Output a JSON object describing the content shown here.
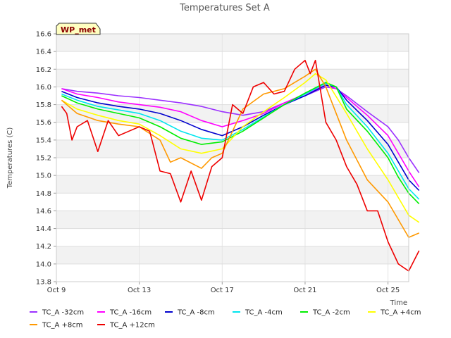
{
  "chart_data": {
    "type": "line",
    "title": "Temperatures Set A",
    "xlabel": "Time",
    "ylabel": "Temperatures (C)",
    "badge": "WP_met",
    "ylim": [
      13.8,
      16.6
    ],
    "yticks": [
      "13.8",
      "14.0",
      "14.2",
      "14.4",
      "14.6",
      "14.8",
      "15.0",
      "15.2",
      "15.4",
      "15.6",
      "15.8",
      "16.0",
      "16.2",
      "16.4",
      "16.6"
    ],
    "xlim": [
      "2023-10-09",
      "2023-10-26"
    ],
    "xticks": [
      {
        "date": "2023-10-09",
        "label": "Oct 9"
      },
      {
        "date": "2023-10-13",
        "label": "Oct 13"
      },
      {
        "date": "2023-10-17",
        "label": "Oct 17"
      },
      {
        "date": "2023-10-21",
        "label": "Oct 21"
      },
      {
        "date": "2023-10-25",
        "label": "Oct 25"
      }
    ],
    "grid": true,
    "legend_position": "bottom",
    "series": [
      {
        "name": "TC_A -32cm",
        "color": "#9b30ff",
        "points": [
          [
            "2023-10-09 06:00",
            15.98
          ],
          [
            "2023-10-10 00:00",
            15.95
          ],
          [
            "2023-10-11 00:00",
            15.93
          ],
          [
            "2023-10-12 00:00",
            15.9
          ],
          [
            "2023-10-13 00:00",
            15.88
          ],
          [
            "2023-10-14 00:00",
            15.85
          ],
          [
            "2023-10-15 00:00",
            15.82
          ],
          [
            "2023-10-16 00:00",
            15.78
          ],
          [
            "2023-10-17 00:00",
            15.72
          ],
          [
            "2023-10-18 00:00",
            15.68
          ],
          [
            "2023-10-19 00:00",
            15.72
          ],
          [
            "2023-10-20 00:00",
            15.82
          ],
          [
            "2023-10-21 00:00",
            15.9
          ],
          [
            "2023-10-22 00:00",
            16.0
          ],
          [
            "2023-10-22 12:00",
            15.98
          ],
          [
            "2023-10-23 00:00",
            15.9
          ],
          [
            "2023-10-24 00:00",
            15.72
          ],
          [
            "2023-10-25 00:00",
            15.55
          ],
          [
            "2023-10-25 12:00",
            15.4
          ],
          [
            "2023-10-26 00:00",
            15.2
          ],
          [
            "2023-10-26 12:00",
            15.03
          ]
        ]
      },
      {
        "name": "TC_A -16cm",
        "color": "#ff00ff",
        "points": [
          [
            "2023-10-09 06:00",
            15.98
          ],
          [
            "2023-10-10 00:00",
            15.92
          ],
          [
            "2023-10-11 00:00",
            15.88
          ],
          [
            "2023-10-12 00:00",
            15.83
          ],
          [
            "2023-10-13 00:00",
            15.8
          ],
          [
            "2023-10-14 00:00",
            15.77
          ],
          [
            "2023-10-15 00:00",
            15.72
          ],
          [
            "2023-10-16 00:00",
            15.62
          ],
          [
            "2023-10-17 00:00",
            15.55
          ],
          [
            "2023-10-18 00:00",
            15.62
          ],
          [
            "2023-10-19 00:00",
            15.7
          ],
          [
            "2023-10-20 00:00",
            15.82
          ],
          [
            "2023-10-21 00:00",
            15.92
          ],
          [
            "2023-10-22 00:00",
            16.02
          ],
          [
            "2023-10-22 12:00",
            15.98
          ],
          [
            "2023-10-23 00:00",
            15.88
          ],
          [
            "2023-10-24 00:00",
            15.68
          ],
          [
            "2023-10-25 00:00",
            15.45
          ],
          [
            "2023-10-25 12:00",
            15.25
          ],
          [
            "2023-10-26 00:00",
            15.05
          ],
          [
            "2023-10-26 12:00",
            14.87
          ]
        ]
      },
      {
        "name": "TC_A -8cm",
        "color": "#0000cd",
        "points": [
          [
            "2023-10-09 06:00",
            15.95
          ],
          [
            "2023-10-10 00:00",
            15.88
          ],
          [
            "2023-10-11 00:00",
            15.82
          ],
          [
            "2023-10-12 00:00",
            15.78
          ],
          [
            "2023-10-13 00:00",
            15.75
          ],
          [
            "2023-10-14 00:00",
            15.7
          ],
          [
            "2023-10-15 00:00",
            15.62
          ],
          [
            "2023-10-16 00:00",
            15.52
          ],
          [
            "2023-10-17 00:00",
            15.45
          ],
          [
            "2023-10-18 00:00",
            15.55
          ],
          [
            "2023-10-19 00:00",
            15.68
          ],
          [
            "2023-10-20 00:00",
            15.8
          ],
          [
            "2023-10-21 00:00",
            15.9
          ],
          [
            "2023-10-22 00:00",
            16.02
          ],
          [
            "2023-10-22 12:00",
            16.0
          ],
          [
            "2023-10-23 00:00",
            15.85
          ],
          [
            "2023-10-24 00:00",
            15.62
          ],
          [
            "2023-10-25 00:00",
            15.35
          ],
          [
            "2023-10-25 12:00",
            15.15
          ],
          [
            "2023-10-26 00:00",
            14.95
          ],
          [
            "2023-10-26 12:00",
            14.83
          ]
        ]
      },
      {
        "name": "TC_A -4cm",
        "color": "#00e5ee",
        "points": [
          [
            "2023-10-09 06:00",
            15.92
          ],
          [
            "2023-10-10 00:00",
            15.85
          ],
          [
            "2023-10-11 00:00",
            15.78
          ],
          [
            "2023-10-12 00:00",
            15.74
          ],
          [
            "2023-10-13 00:00",
            15.7
          ],
          [
            "2023-10-14 00:00",
            15.62
          ],
          [
            "2023-10-15 00:00",
            15.5
          ],
          [
            "2023-10-16 00:00",
            15.42
          ],
          [
            "2023-10-17 00:00",
            15.4
          ],
          [
            "2023-10-18 00:00",
            15.52
          ],
          [
            "2023-10-19 00:00",
            15.66
          ],
          [
            "2023-10-20 00:00",
            15.8
          ],
          [
            "2023-10-21 00:00",
            15.92
          ],
          [
            "2023-10-22 00:00",
            16.04
          ],
          [
            "2023-10-22 12:00",
            16.0
          ],
          [
            "2023-10-23 00:00",
            15.8
          ],
          [
            "2023-10-24 00:00",
            15.55
          ],
          [
            "2023-10-25 00:00",
            15.25
          ],
          [
            "2023-10-25 12:00",
            15.05
          ],
          [
            "2023-10-26 00:00",
            14.85
          ],
          [
            "2023-10-26 12:00",
            14.73
          ]
        ]
      },
      {
        "name": "TC_A -2cm",
        "color": "#00ee00",
        "points": [
          [
            "2023-10-09 06:00",
            15.9
          ],
          [
            "2023-10-10 00:00",
            15.82
          ],
          [
            "2023-10-11 00:00",
            15.75
          ],
          [
            "2023-10-12 00:00",
            15.7
          ],
          [
            "2023-10-13 00:00",
            15.65
          ],
          [
            "2023-10-14 00:00",
            15.55
          ],
          [
            "2023-10-15 00:00",
            15.42
          ],
          [
            "2023-10-16 00:00",
            15.35
          ],
          [
            "2023-10-17 00:00",
            15.38
          ],
          [
            "2023-10-18 00:00",
            15.5
          ],
          [
            "2023-10-19 00:00",
            15.65
          ],
          [
            "2023-10-20 00:00",
            15.8
          ],
          [
            "2023-10-21 00:00",
            15.93
          ],
          [
            "2023-10-22 00:00",
            16.05
          ],
          [
            "2023-10-22 12:00",
            16.0
          ],
          [
            "2023-10-23 00:00",
            15.75
          ],
          [
            "2023-10-24 00:00",
            15.5
          ],
          [
            "2023-10-25 00:00",
            15.2
          ],
          [
            "2023-10-25 12:00",
            14.98
          ],
          [
            "2023-10-26 00:00",
            14.8
          ],
          [
            "2023-10-26 12:00",
            14.68
          ]
        ]
      },
      {
        "name": "TC_A +4cm",
        "color": "#ffff00",
        "points": [
          [
            "2023-10-09 06:00",
            15.85
          ],
          [
            "2023-10-10 00:00",
            15.75
          ],
          [
            "2023-10-11 00:00",
            15.68
          ],
          [
            "2023-10-12 00:00",
            15.62
          ],
          [
            "2023-10-13 00:00",
            15.58
          ],
          [
            "2023-10-14 00:00",
            15.45
          ],
          [
            "2023-10-15 00:00",
            15.3
          ],
          [
            "2023-10-16 00:00",
            15.25
          ],
          [
            "2023-10-17 00:00",
            15.3
          ],
          [
            "2023-10-18 00:00",
            15.55
          ],
          [
            "2023-10-19 00:00",
            15.72
          ],
          [
            "2023-10-20 00:00",
            15.88
          ],
          [
            "2023-10-21 00:00",
            16.05
          ],
          [
            "2023-10-21 12:00",
            16.15
          ],
          [
            "2023-10-22 00:00",
            16.08
          ],
          [
            "2023-10-23 00:00",
            15.7
          ],
          [
            "2023-10-24 00:00",
            15.3
          ],
          [
            "2023-10-25 00:00",
            14.95
          ],
          [
            "2023-10-25 12:00",
            14.75
          ],
          [
            "2023-10-26 00:00",
            14.55
          ],
          [
            "2023-10-26 12:00",
            14.47
          ]
        ]
      },
      {
        "name": "TC_A +8cm",
        "color": "#ff9900",
        "points": [
          [
            "2023-10-09 06:00",
            15.85
          ],
          [
            "2023-10-10 00:00",
            15.7
          ],
          [
            "2023-10-11 00:00",
            15.62
          ],
          [
            "2023-10-12 00:00",
            15.58
          ],
          [
            "2023-10-13 00:00",
            15.55
          ],
          [
            "2023-10-14 00:00",
            15.4
          ],
          [
            "2023-10-14 12:00",
            15.15
          ],
          [
            "2023-10-15 00:00",
            15.2
          ],
          [
            "2023-10-16 00:00",
            15.08
          ],
          [
            "2023-10-16 12:00",
            15.2
          ],
          [
            "2023-10-17 00:00",
            15.25
          ],
          [
            "2023-10-18 00:00",
            15.75
          ],
          [
            "2023-10-19 00:00",
            15.92
          ],
          [
            "2023-10-20 00:00",
            15.98
          ],
          [
            "2023-10-20 12:00",
            16.05
          ],
          [
            "2023-10-21 00:00",
            16.12
          ],
          [
            "2023-10-21 12:00",
            16.2
          ],
          [
            "2023-10-22 00:00",
            16.0
          ],
          [
            "2023-10-23 00:00",
            15.4
          ],
          [
            "2023-10-24 00:00",
            14.95
          ],
          [
            "2023-10-25 00:00",
            14.7
          ],
          [
            "2023-10-25 12:00",
            14.5
          ],
          [
            "2023-10-26 00:00",
            14.3
          ],
          [
            "2023-10-26 12:00",
            14.35
          ]
        ]
      },
      {
        "name": "TC_A +12cm",
        "color": "#ee0000",
        "points": [
          [
            "2023-10-09 06:00",
            15.78
          ],
          [
            "2023-10-09 12:00",
            15.7
          ],
          [
            "2023-10-09 18:00",
            15.4
          ],
          [
            "2023-10-10 00:00",
            15.55
          ],
          [
            "2023-10-10 12:00",
            15.62
          ],
          [
            "2023-10-11 00:00",
            15.27
          ],
          [
            "2023-10-11 12:00",
            15.62
          ],
          [
            "2023-10-12 00:00",
            15.45
          ],
          [
            "2023-10-12 12:00",
            15.5
          ],
          [
            "2023-10-13 00:00",
            15.55
          ],
          [
            "2023-10-13 12:00",
            15.5
          ],
          [
            "2023-10-14 00:00",
            15.05
          ],
          [
            "2023-10-14 12:00",
            15.02
          ],
          [
            "2023-10-15 00:00",
            14.7
          ],
          [
            "2023-10-15 12:00",
            15.05
          ],
          [
            "2023-10-16 00:00",
            14.72
          ],
          [
            "2023-10-16 12:00",
            15.1
          ],
          [
            "2023-10-17 00:00",
            15.2
          ],
          [
            "2023-10-17 12:00",
            15.8
          ],
          [
            "2023-10-18 00:00",
            15.7
          ],
          [
            "2023-10-18 12:00",
            16.0
          ],
          [
            "2023-10-19 00:00",
            16.05
          ],
          [
            "2023-10-19 12:00",
            15.92
          ],
          [
            "2023-10-20 00:00",
            15.95
          ],
          [
            "2023-10-20 12:00",
            16.2
          ],
          [
            "2023-10-21 00:00",
            16.3
          ],
          [
            "2023-10-21 06:00",
            16.15
          ],
          [
            "2023-10-21 12:00",
            16.3
          ],
          [
            "2023-10-22 00:00",
            15.6
          ],
          [
            "2023-10-22 12:00",
            15.4
          ],
          [
            "2023-10-23 00:00",
            15.1
          ],
          [
            "2023-10-23 12:00",
            14.9
          ],
          [
            "2023-10-24 00:00",
            14.6
          ],
          [
            "2023-10-24 12:00",
            14.6
          ],
          [
            "2023-10-25 00:00",
            14.25
          ],
          [
            "2023-10-25 12:00",
            14.0
          ],
          [
            "2023-10-26 00:00",
            13.92
          ],
          [
            "2023-10-26 12:00",
            14.15
          ]
        ]
      }
    ]
  }
}
